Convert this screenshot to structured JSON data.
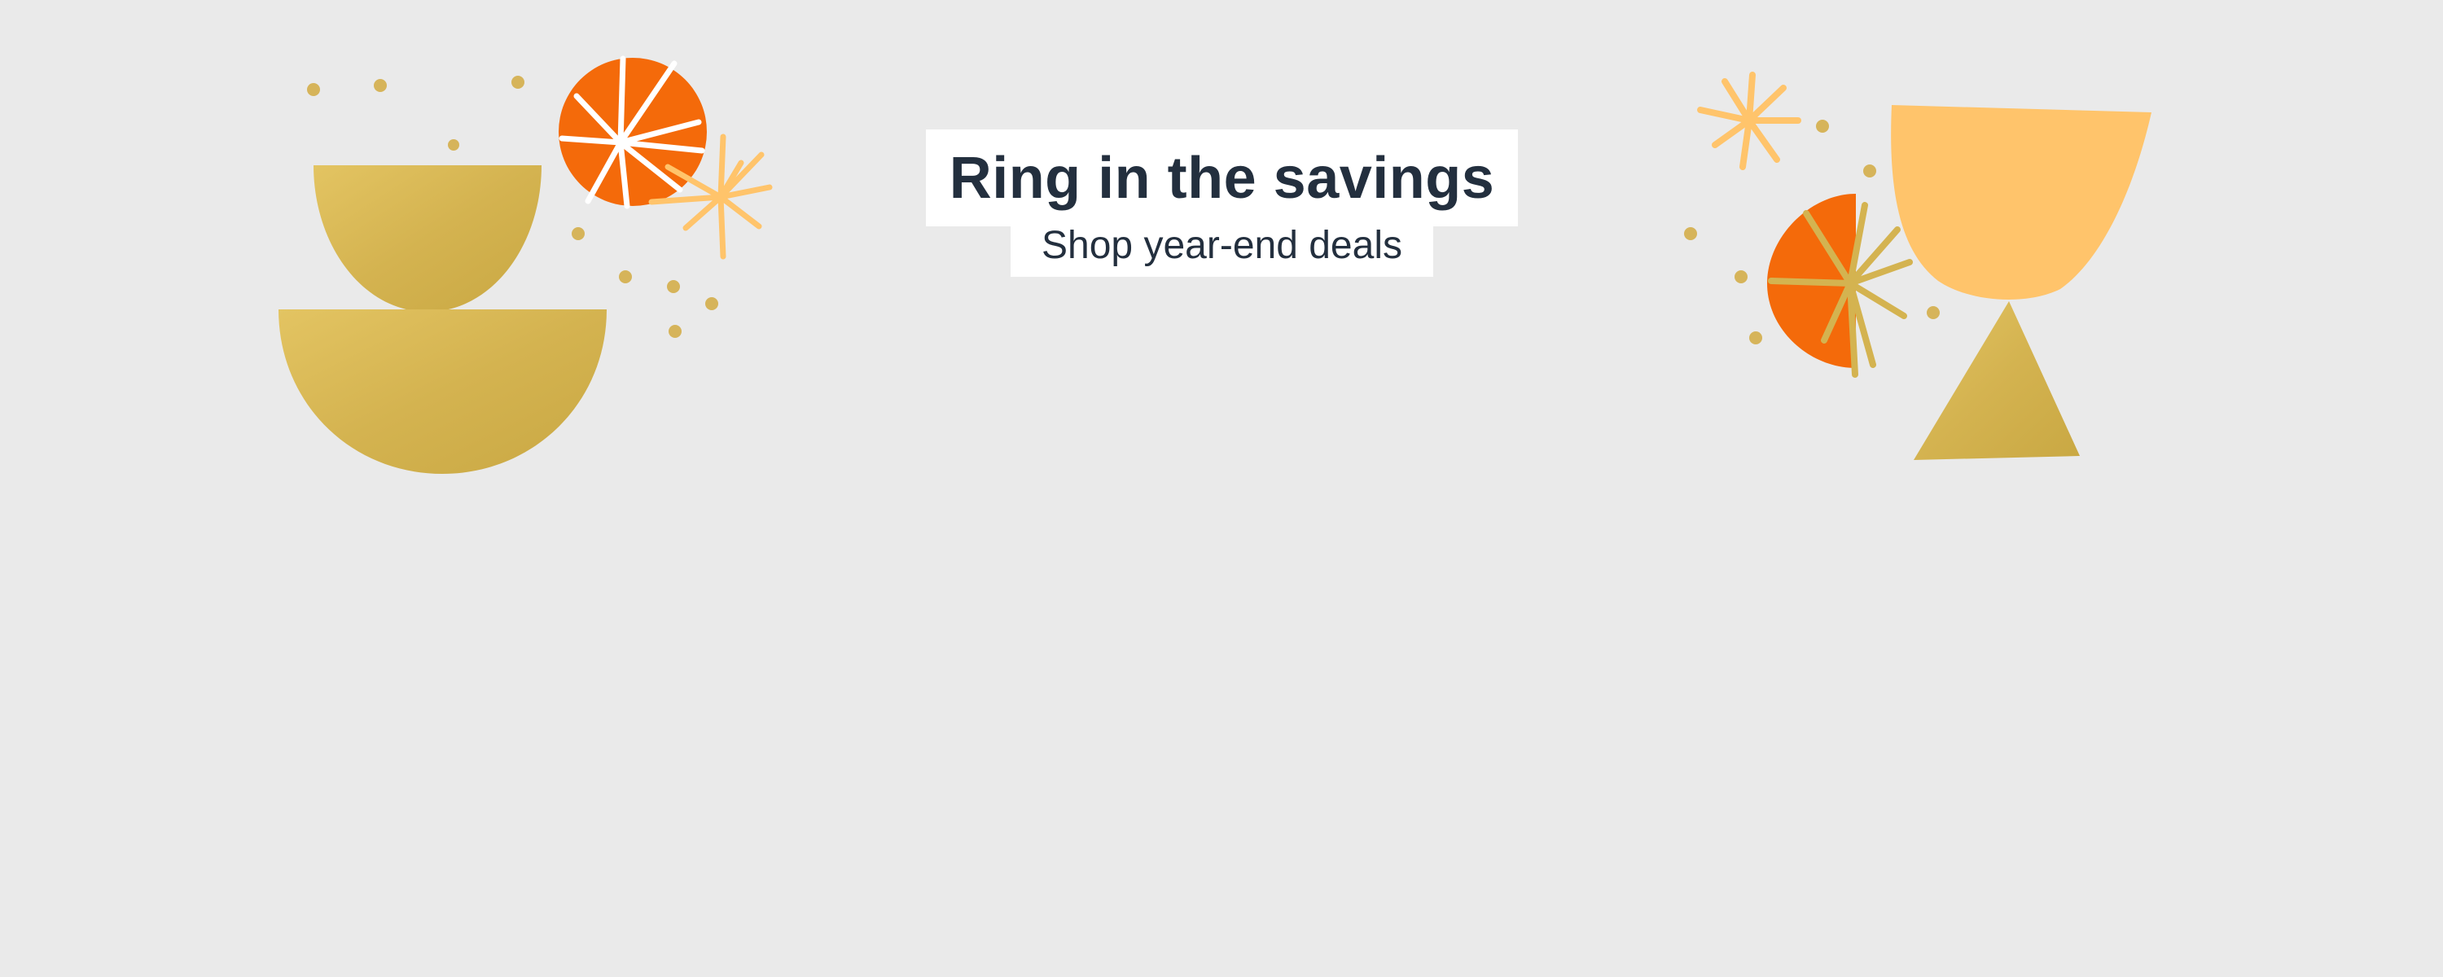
{
  "banner": {
    "headline": "Ring in the savings",
    "subheadline": "Shop year-end deals"
  },
  "colors": {
    "background": "#eaeaea",
    "text": "#232f3e",
    "gold": "#d9b652",
    "orange": "#f46a0a",
    "peach": "#ffc46b",
    "white": "#ffffff"
  },
  "decor": {
    "left_group": [
      "gold-half-bowl",
      "gold-large-half-circle",
      "orange-circle",
      "peach-starburst",
      "gold-dots"
    ],
    "right_group": [
      "peach-goblet-cup",
      "gold-triangle",
      "orange-half-circle",
      "gold-starburst",
      "peach-starburst-small",
      "gold-dots"
    ]
  }
}
